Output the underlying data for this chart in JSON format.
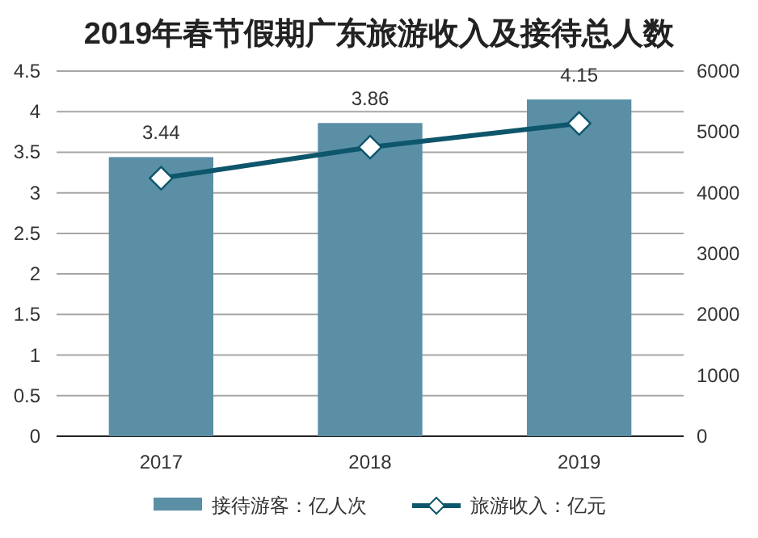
{
  "chart_data": {
    "type": "bar",
    "title": "2019年春节假期广东旅游收入及接待总人数",
    "categories": [
      "2017",
      "2018",
      "2019"
    ],
    "series": [
      {
        "name": "接待游客：亿人次",
        "color": "#5b8fa6",
        "values": [
          3.44,
          3.86,
          4.15
        ],
        "value_labels": [
          "3.44",
          "3.86",
          "4.15"
        ]
      },
      {
        "name": "旅游收入：亿元",
        "type": "line",
        "axis": "y2",
        "color": "#0d566b",
        "marker": "diamond",
        "values": [
          4240,
          4750,
          5140
        ]
      }
    ],
    "ylim": [
      0,
      4.5
    ],
    "yticks": [
      0,
      0.5,
      1,
      1.5,
      2,
      2.5,
      3,
      3.5,
      4,
      4.5
    ],
    "y2lim": [
      0,
      6000
    ],
    "y2ticks": [
      0,
      1000,
      2000,
      3000,
      4000,
      5000,
      6000
    ],
    "grid": "y",
    "legend": "bottom"
  }
}
